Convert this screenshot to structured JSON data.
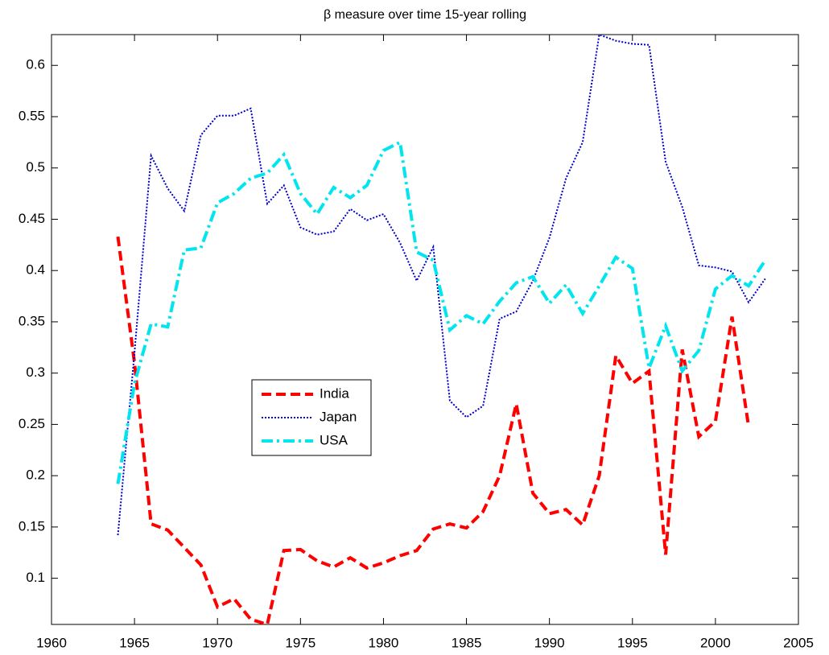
{
  "chart_data": {
    "type": "line",
    "title": "β measure over time 15-year rolling",
    "x": [
      1964,
      1965,
      1966,
      1967,
      1968,
      1969,
      1970,
      1971,
      1972,
      1973,
      1974,
      1975,
      1976,
      1977,
      1978,
      1979,
      1980,
      1981,
      1982,
      1983,
      1984,
      1985,
      1986,
      1987,
      1988,
      1989,
      1990,
      1991,
      1992,
      1993,
      1994,
      1995,
      1996,
      1997,
      1998,
      1999,
      2000,
      2001,
      2002,
      2003
    ],
    "series": [
      {
        "name": "India",
        "color": "#ff0000",
        "linestyle": "dashed",
        "values": [
          0.433,
          0.31,
          0.153,
          0.147,
          0.13,
          0.113,
          0.072,
          0.08,
          0.06,
          0.055,
          0.127,
          0.128,
          0.117,
          0.111,
          0.12,
          0.11,
          0.115,
          0.122,
          0.127,
          0.148,
          0.153,
          0.149,
          0.165,
          0.2,
          0.27,
          0.183,
          0.163,
          0.167,
          0.152,
          0.2,
          0.317,
          0.29,
          0.302,
          0.123,
          0.323,
          0.238,
          0.253,
          0.355,
          0.248,
          null
        ]
      },
      {
        "name": "Japan",
        "color": "#0000cc",
        "linestyle": "dotted",
        "values": [
          0.142,
          0.32,
          0.512,
          0.48,
          0.458,
          0.532,
          0.551,
          0.551,
          0.558,
          0.465,
          0.483,
          0.442,
          0.435,
          0.438,
          0.46,
          0.449,
          0.455,
          0.427,
          0.39,
          0.423,
          0.273,
          0.257,
          0.268,
          0.353,
          0.36,
          0.39,
          0.432,
          0.49,
          0.525,
          0.63,
          0.624,
          0.621,
          0.62,
          0.506,
          0.462,
          0.405,
          0.403,
          0.399,
          0.369,
          0.392
        ]
      },
      {
        "name": "USA",
        "color": "#00e5ee",
        "linestyle": "dashdot",
        "values": [
          0.192,
          0.29,
          0.348,
          0.345,
          0.42,
          0.422,
          0.466,
          0.475,
          0.49,
          0.495,
          0.513,
          0.475,
          0.455,
          0.481,
          0.471,
          0.483,
          0.517,
          0.525,
          0.418,
          0.41,
          0.342,
          0.356,
          0.348,
          0.37,
          0.388,
          0.394,
          0.368,
          0.386,
          0.358,
          0.385,
          0.413,
          0.402,
          0.305,
          0.346,
          0.302,
          0.322,
          0.382,
          0.395,
          0.385,
          0.41
        ]
      }
    ],
    "xlim": [
      1960,
      2005
    ],
    "xticks": [
      1960,
      1965,
      1970,
      1975,
      1980,
      1985,
      1990,
      1995,
      2000,
      2005
    ],
    "ylim": [
      0.055,
      0.63
    ],
    "yticks": [
      0.1,
      0.15,
      0.2,
      0.25,
      0.3,
      0.35,
      0.4,
      0.45,
      0.5,
      0.55,
      0.6
    ],
    "grid": false,
    "legend_loc": "center-left"
  }
}
